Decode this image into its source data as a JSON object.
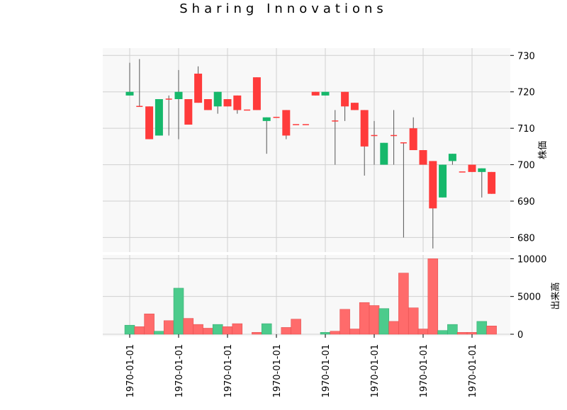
{
  "chart_data": {
    "type": "candlestick",
    "title": "Sharing Innovations",
    "price_axis_label": "株価",
    "volume_axis_label": "出来高",
    "price_ylim": [
      676,
      732
    ],
    "price_ticks": [
      "680",
      "690",
      "700",
      "710",
      "720",
      "730"
    ],
    "volume_ylim": [
      0,
      10500
    ],
    "volume_ticks": [
      "0",
      "5000",
      "10000"
    ],
    "x_tick_labels": [
      "1970-01-01",
      "1970-01-01",
      "1970-01-01",
      "1970-01-01",
      "1970-01-01",
      "1970-01-01",
      "1970-01-01",
      "1970-01-01"
    ],
    "x_tick_sessions": [
      0,
      5,
      10,
      15,
      20,
      25,
      30,
      35
    ],
    "grid": true,
    "colors": {
      "up": "#16b86b",
      "down": "#ff3b3b",
      "wick": "#555555",
      "panel_bg": "#f8f8f8",
      "grid": "#d0d0d0"
    },
    "candles": [
      {
        "open": 719,
        "high": 728,
        "low": 719,
        "close": 720,
        "volume": 1200
      },
      {
        "open": 716,
        "high": 729,
        "low": 716,
        "close": 716,
        "volume": 1000
      },
      {
        "open": 716,
        "high": 716,
        "low": 707,
        "close": 707,
        "volume": 2700
      },
      {
        "open": 708,
        "high": 718,
        "low": 708,
        "close": 718,
        "volume": 400
      },
      {
        "open": 718,
        "high": 719,
        "low": 708,
        "close": 718,
        "volume": 1800
      },
      {
        "open": 718,
        "high": 726,
        "low": 707,
        "close": 720,
        "volume": 6100
      },
      {
        "open": 718,
        "high": 718,
        "low": 711,
        "close": 711,
        "volume": 2100
      },
      {
        "open": 725,
        "high": 727,
        "low": 717,
        "close": 717,
        "volume": 1300
      },
      {
        "open": 718,
        "high": 718,
        "low": 715,
        "close": 715,
        "volume": 800
      },
      {
        "open": 716,
        "high": 720,
        "low": 714,
        "close": 720,
        "volume": 1300
      },
      {
        "open": 718,
        "high": 718,
        "low": 716,
        "close": 716,
        "volume": 1000
      },
      {
        "open": 719,
        "high": 719,
        "low": 714,
        "close": 715,
        "volume": 1400
      },
      {
        "open": 715,
        "high": 715,
        "low": 715,
        "close": 715,
        "volume": 0
      },
      {
        "open": 724,
        "high": 724,
        "low": 715,
        "close": 715,
        "volume": 250
      },
      {
        "open": 712,
        "high": 713,
        "low": 703,
        "close": 713,
        "volume": 1400
      },
      {
        "open": 713,
        "high": 713,
        "low": 713,
        "close": 713,
        "volume": 0
      },
      {
        "open": 715,
        "high": 715,
        "low": 707,
        "close": 708,
        "volume": 900
      },
      {
        "open": 711,
        "high": 711,
        "low": 711,
        "close": 711,
        "volume": 2000
      },
      {
        "open": 711,
        "high": 711,
        "low": 711,
        "close": 711,
        "volume": 0
      },
      {
        "open": 720,
        "high": 720,
        "low": 719,
        "close": 719,
        "volume": 0
      },
      {
        "open": 719,
        "high": 720,
        "low": 719,
        "close": 720,
        "volume": 250
      },
      {
        "open": 712,
        "high": 715,
        "low": 700,
        "close": 712,
        "volume": 400
      },
      {
        "open": 720,
        "high": 720,
        "low": 712,
        "close": 716,
        "volume": 3300
      },
      {
        "open": 717,
        "high": 717,
        "low": 715,
        "close": 715,
        "volume": 700
      },
      {
        "open": 715,
        "high": 715,
        "low": 697,
        "close": 705,
        "volume": 4200
      },
      {
        "open": 708,
        "high": 712,
        "low": 700,
        "close": 708,
        "volume": 3800
      },
      {
        "open": 700,
        "high": 706,
        "low": 700,
        "close": 706,
        "volume": 3400
      },
      {
        "open": 708,
        "high": 715,
        "low": 700,
        "close": 708,
        "volume": 1700
      },
      {
        "open": 706,
        "high": 706,
        "low": 680,
        "close": 706,
        "volume": 8100
      },
      {
        "open": 710,
        "high": 713,
        "low": 704,
        "close": 704,
        "volume": 3500
      },
      {
        "open": 704,
        "high": 704,
        "low": 700,
        "close": 700,
        "volume": 700
      },
      {
        "open": 701,
        "high": 701,
        "low": 677,
        "close": 688,
        "volume": 10000
      },
      {
        "open": 691,
        "high": 700,
        "low": 691,
        "close": 700,
        "volume": 500
      },
      {
        "open": 701,
        "high": 703,
        "low": 700,
        "close": 703,
        "volume": 1300
      },
      {
        "open": 698,
        "high": 698,
        "low": 698,
        "close": 698,
        "volume": 250
      },
      {
        "open": 700,
        "high": 700,
        "low": 698,
        "close": 698,
        "volume": 250
      },
      {
        "open": 698,
        "high": 699,
        "low": 691,
        "close": 699,
        "volume": 1700
      },
      {
        "open": 698,
        "high": 698,
        "low": 692,
        "close": 692,
        "volume": 1100
      }
    ]
  }
}
